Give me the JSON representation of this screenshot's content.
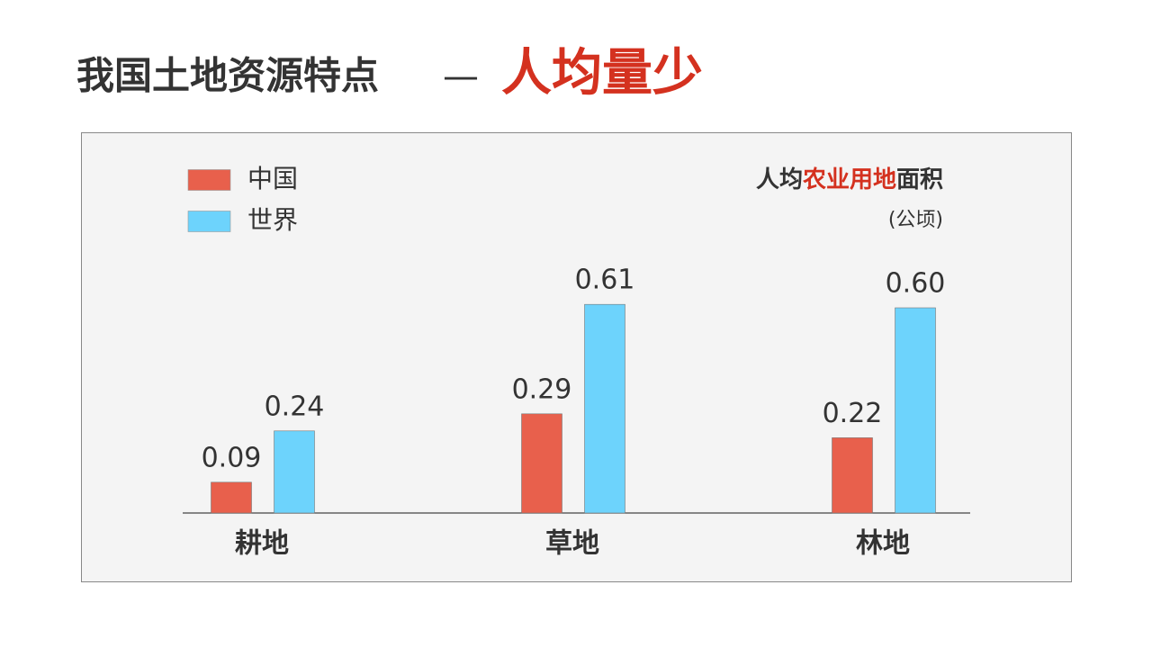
{
  "header": {
    "title": "我国土地资源特点",
    "separator": "—",
    "highlight": "人均量少"
  },
  "chart_data": {
    "type": "bar",
    "title_parts": [
      "人均",
      "农业用地",
      "面积"
    ],
    "subtitle": "(公顷)",
    "categories": [
      "耕地",
      "草地",
      "林地"
    ],
    "series": [
      {
        "name": "中国",
        "color": "#e8604c",
        "values": [
          0.09,
          0.29,
          0.22
        ],
        "value_labels": [
          "0.09",
          "0.29",
          "0.22"
        ]
      },
      {
        "name": "世界",
        "color": "#6dd3fc",
        "values": [
          0.24,
          0.61,
          0.6
        ],
        "value_labels": [
          "0.24",
          "0.61",
          "0.60"
        ]
      }
    ],
    "legend": "top-left"
  }
}
